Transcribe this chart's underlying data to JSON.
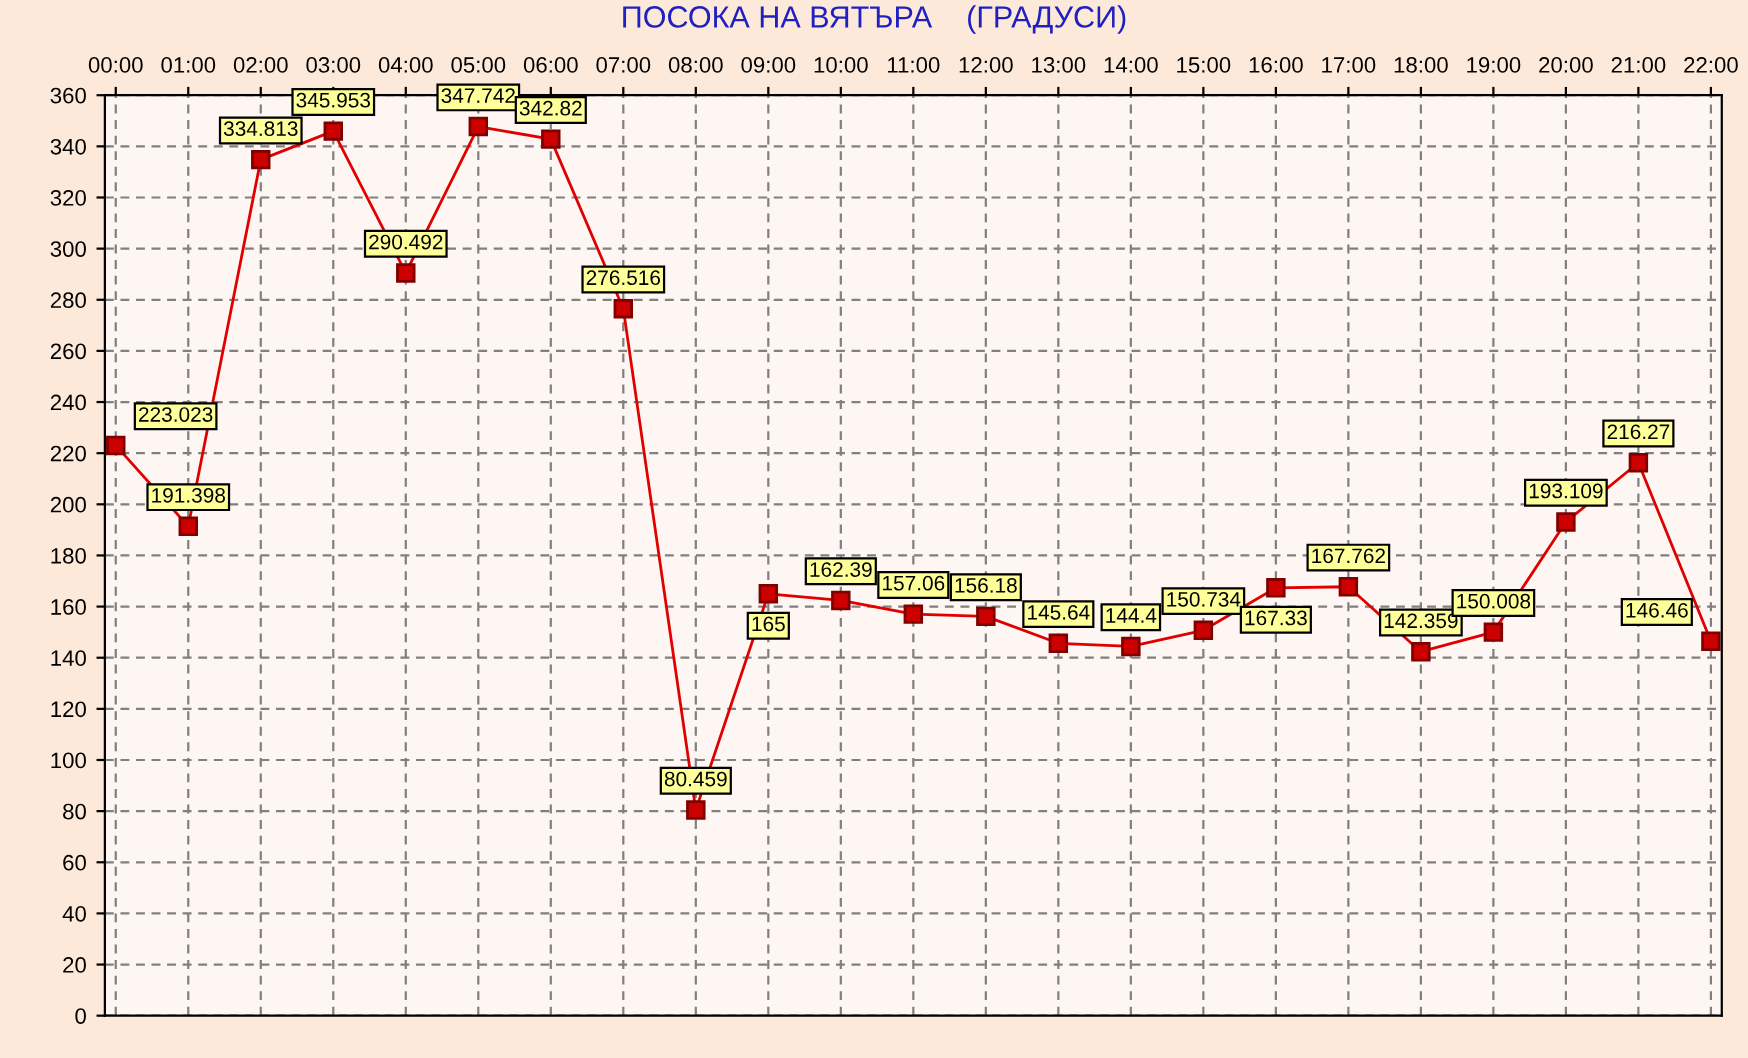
{
  "chart_data": {
    "type": "line",
    "title": "ПОСОКА НА ВЯТЪРА    (ГРАДУСИ)",
    "categories": [
      "00:00",
      "01:00",
      "02:00",
      "03:00",
      "04:00",
      "05:00",
      "06:00",
      "07:00",
      "08:00",
      "09:00",
      "10:00",
      "11:00",
      "12:00",
      "13:00",
      "14:00",
      "15:00",
      "16:00",
      "17:00",
      "18:00",
      "19:00",
      "20:00",
      "21:00",
      "22:00"
    ],
    "series": [
      {
        "color": "#e00000",
        "values": [
          223.023,
          191.398,
          334.813,
          345.953,
          290.492,
          347.742,
          342.82,
          276.516,
          80.459,
          165,
          162.39,
          157.06,
          156.18,
          145.64,
          144.4,
          150.734,
          167.33,
          167.762,
          142.359,
          150.008,
          193.109,
          216.27,
          146.46
        ]
      }
    ],
    "ylim": [
      0,
      360
    ],
    "yticks": [
      0,
      20,
      40,
      60,
      80,
      100,
      120,
      140,
      160,
      180,
      200,
      220,
      240,
      260,
      280,
      300,
      320,
      340,
      360
    ],
    "grid": true,
    "marker": "square",
    "line_style": "solid",
    "data_labels": true
  }
}
